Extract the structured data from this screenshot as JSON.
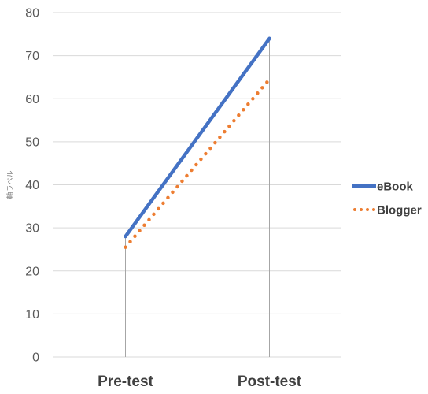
{
  "chart_data": {
    "type": "line",
    "categories": [
      "Pre-test",
      "Post-test"
    ],
    "series": [
      {
        "name": "eBook",
        "values": [
          28,
          74
        ],
        "color": "#4472C4",
        "style": "solid"
      },
      {
        "name": "Blogger",
        "values": [
          25.5,
          64.5
        ],
        "color": "#ED7D31",
        "style": "dotted"
      }
    ],
    "ylabel": "軸ラベル",
    "xlabel": "",
    "ylim": [
      0,
      80
    ],
    "yticks": [
      0,
      10,
      20,
      30,
      40,
      50,
      60,
      70,
      80
    ],
    "grid": true,
    "drop_lines": true,
    "legend_position": "right"
  }
}
